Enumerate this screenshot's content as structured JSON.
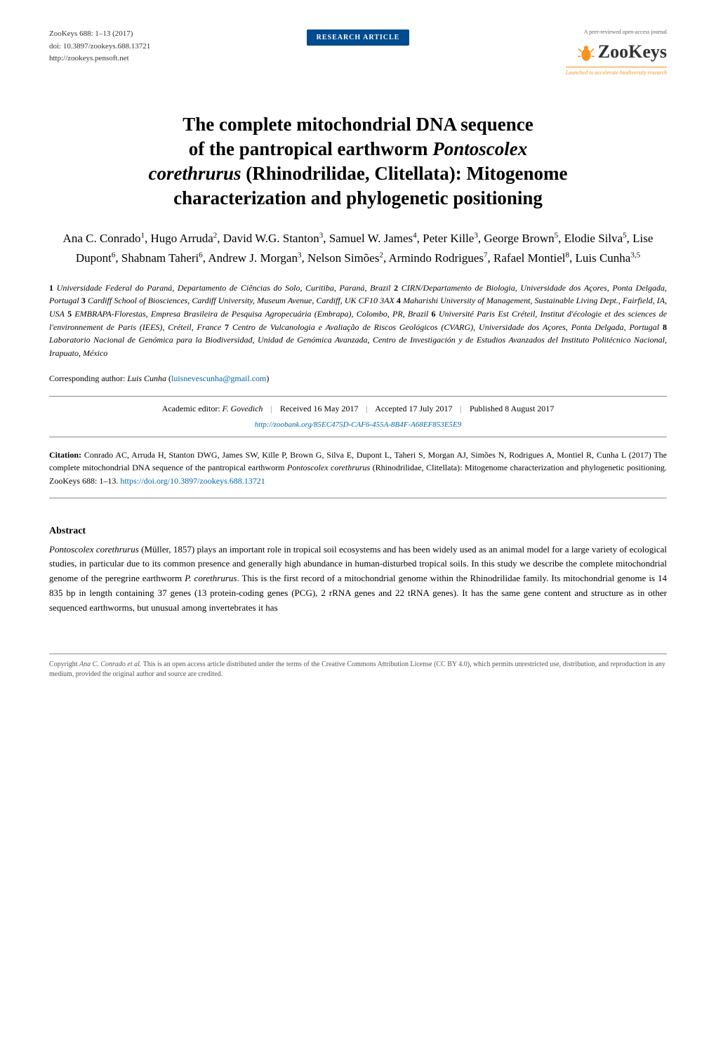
{
  "journal": {
    "name_line": "ZooKeys 688: 1–13 (2017)",
    "doi": "doi: 10.3897/zookeys.688.13721",
    "url": "http://zookeys.pensoft.net",
    "badge": "RESEARCH ARTICLE",
    "logo_top": "A peer-reviewed open-access journal",
    "logo_text": "ZooKeys",
    "logo_sub": "Launched to accelerate biodiversity research"
  },
  "title": {
    "line1": "The complete mitochondrial DNA sequence",
    "line2_pre": "of the pantropical earthworm ",
    "line2_italic": "Pontoscolex",
    "line3_italic": "corethrurus",
    "line3_post": " (Rhinodrilidae, Clitellata): Mitogenome",
    "line4": "characterization and phylogenetic positioning"
  },
  "authors_html": "Ana C. Conrado<sup>1</sup>, Hugo Arruda<sup>2</sup>, David W.G. Stanton<sup>3</sup>, Samuel W. James<sup>4</sup>, Peter Kille<sup>3</sup>, George Brown<sup>5</sup>, Elodie Silva<sup>5</sup>, Lise Dupont<sup>6</sup>, Shabnam Taheri<sup>6</sup>, Andrew J. Morgan<sup>3</sup>, Nelson Simões<sup>2</sup>, Armindo Rodrigues<sup>7</sup>, Rafael Montiel<sup>8</sup>, Luis Cunha<sup>3,5</sup>",
  "affiliations": [
    {
      "n": "1",
      "text": "Universidade Federal do Paraná, Departamento de Ciências do Solo, Curitiba, Paraná, Brazil"
    },
    {
      "n": "2",
      "text": "CIRN/Departamento de Biologia, Universidade dos Açores, Ponta Delgada, Portugal"
    },
    {
      "n": "3",
      "text": "Cardiff School of Biosciences, Cardiff University, Museum Avenue, Cardiff, UK CF10 3AX"
    },
    {
      "n": "4",
      "text": "Maharishi University of Management, Sustainable Living Dept., Fairfield, IA, USA"
    },
    {
      "n": "5",
      "text": "EMBRAPA-Florestas, Empresa Brasileira de Pesquisa Agropecuária (Embrapa), Colombo, PR, Brazil"
    },
    {
      "n": "6",
      "text": "Université Paris Est Créteil, Institut d'écologie et des sciences de l'environnement de Paris (IEES), Créteil, France"
    },
    {
      "n": "7",
      "text": "Centro de Vulcanologia e Avaliação de Riscos Geológicos (CVARG), Universidade dos Açores, Ponta Delgada, Portugal"
    },
    {
      "n": "8",
      "text": "Laboratorio Nacional de Genómica para la Biodiversidad, Unidad de Genómica Avanzada, Centro de Investigación y de Estudios Avanzados del Instituto Politécnico Nacional, Irapuato, México"
    }
  ],
  "corresponding": {
    "label": "Corresponding author: ",
    "name": "Luis Cunha",
    "email": "luisnevescunha@gmail.com"
  },
  "meta": {
    "editor": "Academic editor: F. Govedich",
    "received": "Received 16 May 2017",
    "accepted": "Accepted 17 July 2017",
    "published": "Published 8 August 2017",
    "zoobank": "http://zoobank.org/85EC475D-CAF6-455A-8B4F-A68EF853E5E9"
  },
  "citation": {
    "label": "Citation:",
    "text_pre": " Conrado AC, Arruda H, Stanton DWG, James SW, Kille P, Brown G, Silva E, Dupont L, Taheri S, Morgan AJ, Simões N, Rodrigues A, Montiel R, Cunha L (2017) The complete mitochondrial DNA sequence of the pantropical earthworm ",
    "italic": "Pontoscolex corethrurus",
    "text_post": " (Rhinodrilidae, Clitellata): Mitogenome characterization and phylogenetic positioning. ZooKeys 688: 1–13. ",
    "doi": "https://doi.org/10.3897/zookeys.688.13721"
  },
  "abstract": {
    "heading": "Abstract",
    "sp1": "Pontoscolex corethrurus",
    "t1": " (Müller, 1857) plays an important role in tropical soil ecosystems and has been widely used as an animal model for a large variety of ecological studies, in particular due to its common presence and generally high abundance in human-disturbed tropical soils. In this study we describe the complete mitochondrial genome of the peregrine earthworm ",
    "sp2": "P. corethrurus",
    "t2": ". This is the first record of a mitochondrial genome within the Rhinodrilidae family. Its mitochondrial genome is 14 835 bp in length containing 37 genes (13 protein-coding genes (PCG), 2 rRNA genes and 22 tRNA genes). It has the same gene content and structure as in other sequenced earthworms, but unusual among invertebrates it has"
  },
  "footer": {
    "copyright_pre": "Copyright ",
    "copyright_italic": "Ana C. Conrado et al.",
    "copyright_post": " This is an open access article distributed under the terms of the Creative Commons Attribution License (CC BY 4.0), which permits unrestricted use, distribution, and reproduction in any medium, provided the original author and source are credited."
  },
  "colors": {
    "badge_bg": "#004b8d",
    "badge_fg": "#ffffff",
    "link": "#0066aa",
    "logo_orange": "#f7931e",
    "rule": "#888888",
    "text": "#000000",
    "body_bg": "#ffffff"
  }
}
